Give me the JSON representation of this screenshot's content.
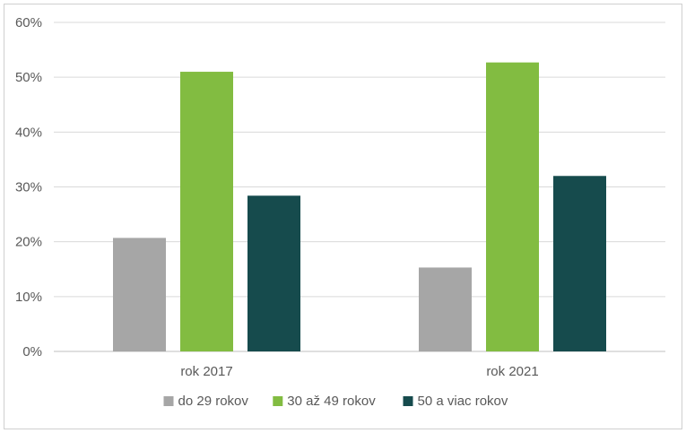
{
  "chart_data": {
    "type": "bar",
    "categories": [
      "rok 2017",
      "rok 2021"
    ],
    "series": [
      {
        "name": "do 29 rokov",
        "values": [
          20.7,
          15.3
        ],
        "color": "#a6a6a6"
      },
      {
        "name": "30 až 49 rokov",
        "values": [
          51.0,
          52.7
        ],
        "color": "#82bc41"
      },
      {
        "name": "50 a viac rokov",
        "values": [
          28.4,
          32.0
        ],
        "color": "#164b4d"
      }
    ],
    "title": "",
    "xlabel": "",
    "ylabel": "",
    "ylim": [
      0,
      60
    ],
    "yticks": [
      "0%",
      "10%",
      "20%",
      "30%",
      "40%",
      "50%",
      "60%"
    ],
    "grid": true,
    "legend_position": "bottom"
  }
}
